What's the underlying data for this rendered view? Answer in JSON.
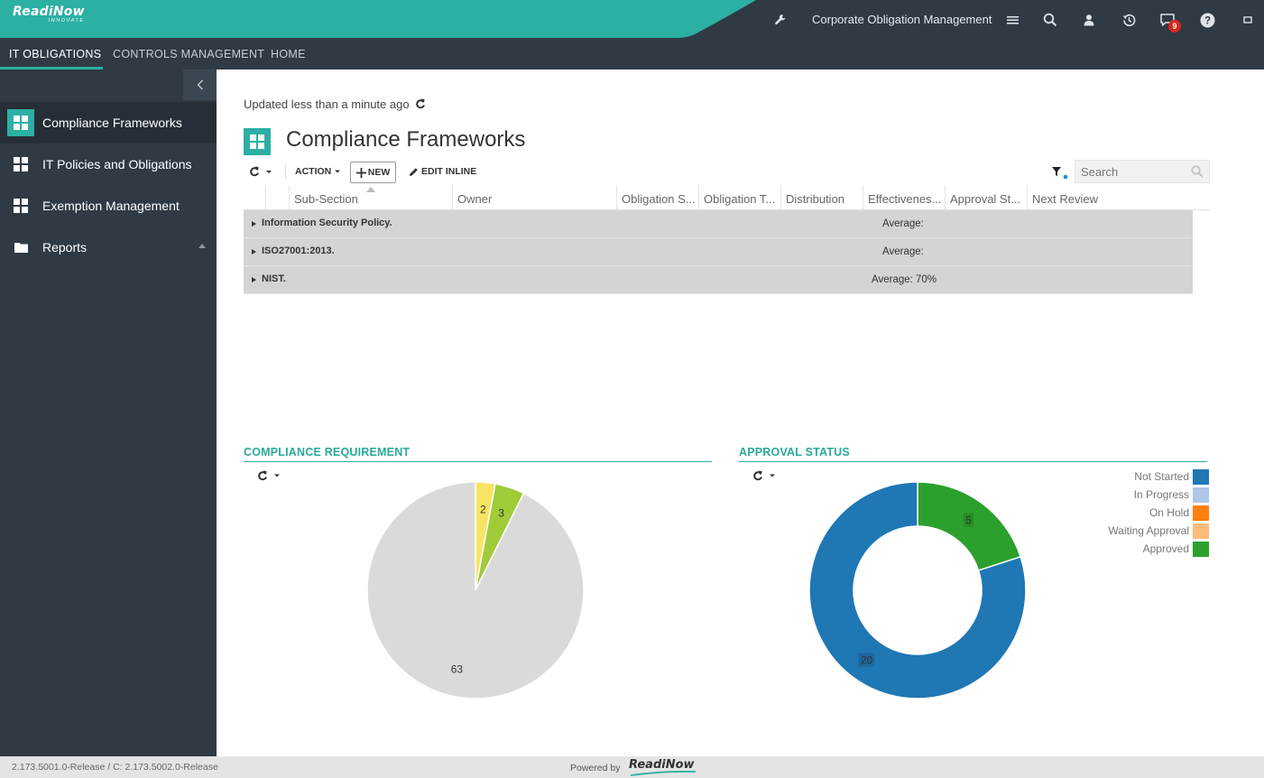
{
  "header": {
    "logo_brand": "ReadiNow",
    "logo_tag": "INNOVATE",
    "app_title": "Corporate Obligation Management",
    "notification_count": "9",
    "icons": [
      "wrench-icon",
      "menu-icon",
      "search-icon",
      "user-icon",
      "history-icon",
      "notifications-icon",
      "help-icon",
      "fullscreen-icon"
    ]
  },
  "nav": {
    "tabs": [
      {
        "label": "IT OBLIGATIONS",
        "active": true
      },
      {
        "label": "CONTROLS MANAGEMENT",
        "active": false
      },
      {
        "label": "HOME",
        "active": false
      }
    ]
  },
  "sidebar": {
    "items": [
      {
        "label": "Compliance Frameworks",
        "icon": "grid-icon",
        "active": true
      },
      {
        "label": "IT Policies and Obligations",
        "icon": "grid-icon",
        "active": false
      },
      {
        "label": "Exemption Management",
        "icon": "grid-icon",
        "active": false
      },
      {
        "label": "Reports",
        "icon": "folder-icon",
        "active": false
      }
    ]
  },
  "main": {
    "updated_text": "Updated less than a minute ago",
    "title": "Compliance Frameworks",
    "toolbar": {
      "action_label": "ACTION",
      "new_label": "NEW",
      "edit_inline_label": "EDIT INLINE",
      "search_placeholder": "Search"
    },
    "grid": {
      "columns": [
        "Sub-Section",
        "Owner",
        "Obligation S...",
        "Obligation T...",
        "Distribution",
        "Effectivenes...",
        "Approval St...",
        "Next Review"
      ],
      "groups": [
        {
          "label": "Information Security Policy.",
          "summary": "Average:"
        },
        {
          "label": "ISO27001:2013.",
          "summary": "Average:"
        },
        {
          "label": "NIST.",
          "summary": "Average: 70%"
        }
      ]
    }
  },
  "charts": {
    "compliance_heading": "COMPLIANCE REQUIREMENT",
    "approval_heading": "APPROVAL STATUS",
    "legend": [
      {
        "label": "Not Started",
        "color": "#1f77b4"
      },
      {
        "label": "In Progress",
        "color": "#aec7e8"
      },
      {
        "label": "On Hold",
        "color": "#ff7f0e"
      },
      {
        "label": "Waiting Approval",
        "color": "#ffbb78"
      },
      {
        "label": "Approved",
        "color": "#2ca02c"
      }
    ]
  },
  "chart_data": [
    {
      "type": "pie",
      "title": "COMPLIANCE REQUIREMENT",
      "values": [
        2,
        3,
        63
      ],
      "colors": [
        "#f7e463",
        "#a0cc3a",
        "#dadada"
      ]
    },
    {
      "type": "pie",
      "subtype": "donut",
      "title": "APPROVAL STATUS",
      "categories": [
        "Approved",
        "Not Started"
      ],
      "values": [
        5,
        20
      ],
      "colors": [
        "#2ca02c",
        "#1f77b4"
      ]
    }
  ],
  "footer": {
    "version": "2.173.5001.0-Release / C: 2.173.5002.0-Release",
    "powered_by": "Powered by",
    "brand": "ReadiNow"
  },
  "colors": {
    "accent": "#2bb0a3",
    "dark": "#2f3a45"
  }
}
